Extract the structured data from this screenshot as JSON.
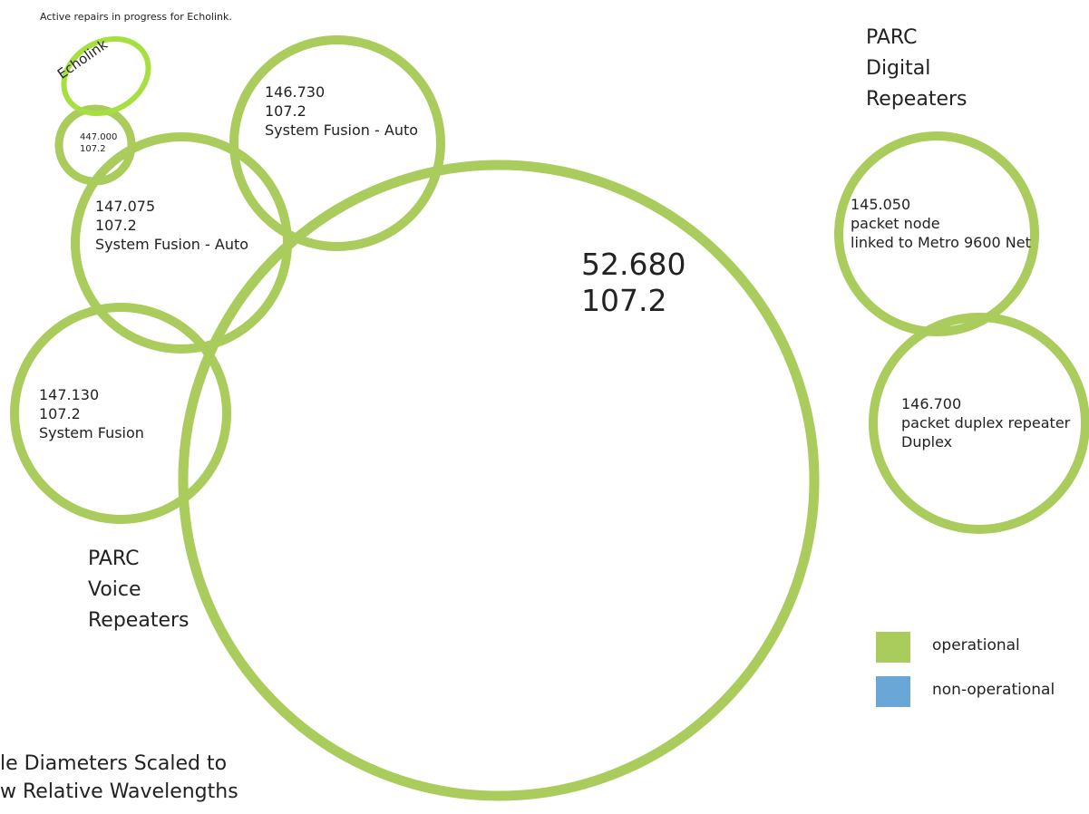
{
  "note": "Active repairs in progress for Echolink.",
  "echolink_label": "Echolink",
  "voice_heading": [
    "PARC",
    "Voice",
    "Repeaters"
  ],
  "digital_heading": [
    "PARC",
    "Digital",
    "Repeaters"
  ],
  "repeaters": {
    "r52680": [
      "52.680",
      "107.2"
    ],
    "r146730": [
      "146.730",
      "107.2",
      "System Fusion - Auto"
    ],
    "r147075": [
      "147.075",
      "107.2",
      "System Fusion - Auto"
    ],
    "r147130": [
      "147.130",
      "107.2",
      "System Fusion"
    ],
    "r447000": [
      "447.000",
      "107.2"
    ],
    "r145050": [
      "145.050",
      "packet node",
      "linked to Metro 9600 Net"
    ],
    "r146700": [
      "146.700",
      "packet duplex repeater",
      "Duplex"
    ]
  },
  "legend": {
    "operational": "operational",
    "non_operational": "non-operational"
  },
  "footer": [
    "le Diameters Scaled to",
    "w Relative Wavelengths"
  ],
  "colors": {
    "operational": "#a9cc5c",
    "non_operational": "#6aa6d6",
    "echolink_highlight": "#a5e040"
  }
}
